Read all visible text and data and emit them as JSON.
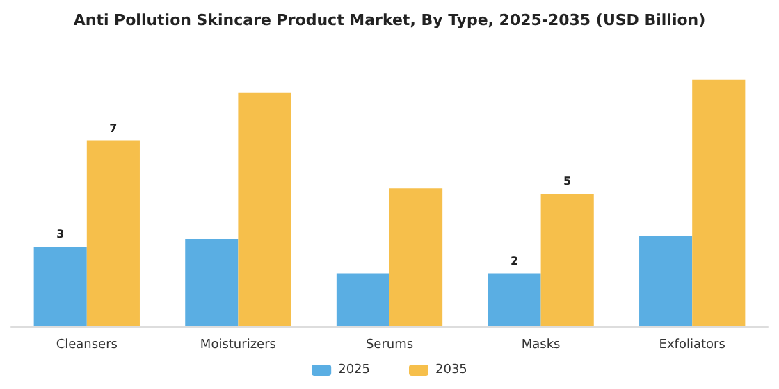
{
  "chart_data": {
    "type": "bar",
    "title": "Anti Pollution Skincare Product Market, By Type, 2025-2035 (USD Billion)",
    "categories": [
      "Cleansers",
      "Moisturizers",
      "Serums",
      "Masks",
      "Exfoliators"
    ],
    "series": [
      {
        "name": "2025",
        "color": "#5aaee3",
        "values": [
          3,
          3.3,
          2.0,
          2,
          3.4
        ],
        "value_labels": [
          "3",
          null,
          null,
          "2",
          null
        ]
      },
      {
        "name": "2035",
        "color": "#f6bf4b",
        "values": [
          7,
          8.8,
          5.2,
          5,
          9.3
        ],
        "value_labels": [
          "7",
          null,
          null,
          "5",
          null
        ]
      }
    ],
    "legend": "bottom"
  }
}
